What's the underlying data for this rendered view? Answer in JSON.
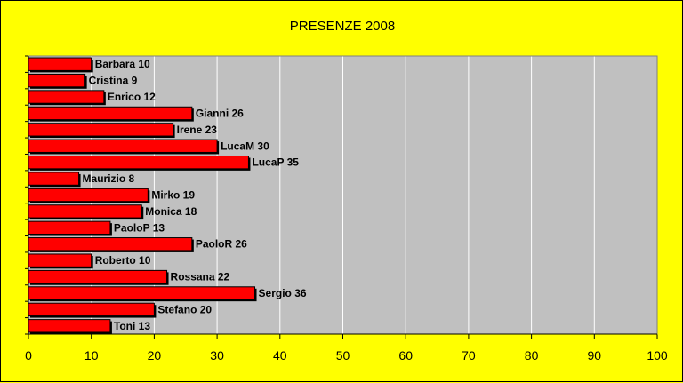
{
  "chart_data": {
    "type": "bar",
    "orientation": "horizontal",
    "title": "PRESENZE 2008",
    "xlabel": "",
    "ylabel": "",
    "categories": [
      "Barbara",
      "Cristina",
      "Enrico",
      "Gianni",
      "Irene",
      "LucaM",
      "LucaP",
      "Maurizio",
      "Mirko",
      "Monica",
      "PaoloP",
      "PaoloR",
      "Roberto",
      "Rossana",
      "Sergio",
      "Stefano",
      "Toni"
    ],
    "values": [
      10,
      9,
      12,
      26,
      23,
      30,
      35,
      8,
      19,
      18,
      13,
      26,
      10,
      22,
      36,
      20,
      13
    ],
    "data_labels": [
      "Barbara 10",
      "Cristina 9",
      "Enrico 12",
      "Gianni 26",
      "Irene 23",
      "LucaM 30",
      "LucaP 35",
      "Maurizio 8",
      "Mirko 19",
      "Monica 18",
      "PaoloP 13",
      "PaoloR 26",
      "Roberto 10",
      "Rossana 22",
      "Sergio 36",
      "Stefano 20",
      "Toni 13"
    ],
    "xlim": [
      0,
      100
    ],
    "x_ticks": [
      "0",
      "10",
      "20",
      "30",
      "40",
      "50",
      "60",
      "70",
      "80",
      "90",
      "100"
    ],
    "grid": "vertical",
    "legend": "none",
    "colors": {
      "page_background": "#ffff00",
      "plot_background": "#c0c0c0",
      "bar_fill": "#ff0000",
      "bar_outline": "#000000",
      "bar_shadow": "#000000",
      "gridline": "#ffffff",
      "text": "#000000"
    }
  }
}
